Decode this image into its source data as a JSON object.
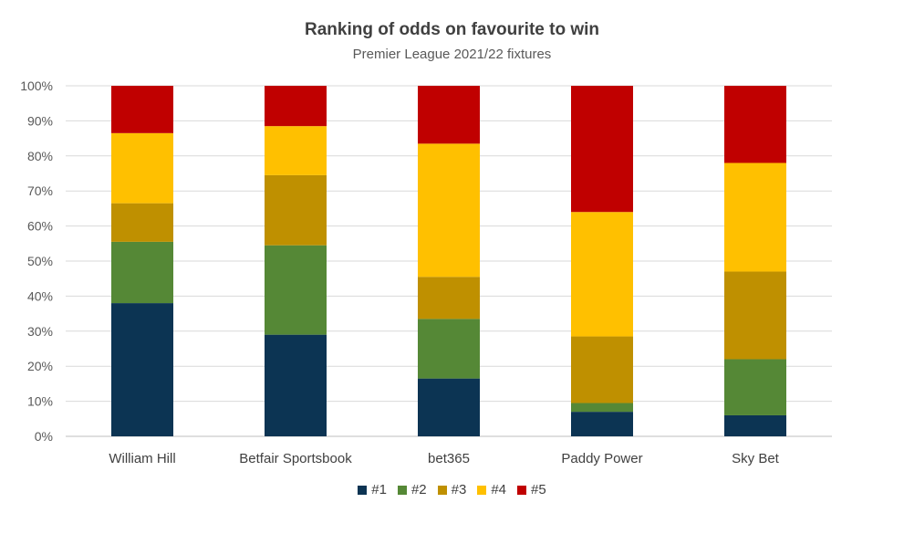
{
  "chart_data": {
    "type": "bar",
    "stacked": true,
    "title": "Ranking of odds on favourite to win",
    "subtitle": "Premier League 2021/22 fixtures",
    "categories": [
      "William Hill",
      "Betfair Sportsbook",
      "bet365",
      "Paddy Power",
      "Sky Bet"
    ],
    "y_ticks": [
      "0%",
      "10%",
      "20%",
      "30%",
      "40%",
      "50%",
      "60%",
      "70%",
      "80%",
      "90%",
      "100%"
    ],
    "ylim": [
      0,
      100
    ],
    "grid": true,
    "legend_position": "bottom",
    "series": [
      {
        "name": "#1",
        "color": "#0c3453",
        "values": [
          38,
          29,
          16.5,
          7,
          6
        ]
      },
      {
        "name": "#2",
        "color": "#558836",
        "values": [
          17.5,
          25.5,
          17,
          2.5,
          16
        ]
      },
      {
        "name": "#3",
        "color": "#bf9000",
        "values": [
          11,
          20,
          12,
          19,
          25
        ]
      },
      {
        "name": "#4",
        "color": "#ffc000",
        "values": [
          20,
          14,
          38,
          35.5,
          31
        ]
      },
      {
        "name": "#5",
        "color": "#c00000",
        "values": [
          13.5,
          11.5,
          16.5,
          36,
          22
        ]
      }
    ]
  }
}
